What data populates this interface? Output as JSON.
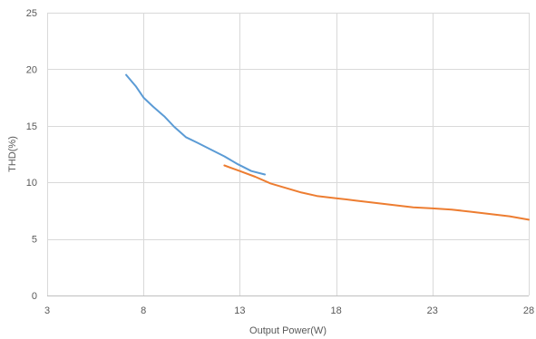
{
  "chart_data": {
    "type": "line",
    "title": "",
    "xlabel": "Output Power(W)",
    "ylabel": "THD(%)",
    "xlim": [
      3,
      28
    ],
    "ylim": [
      0,
      25
    ],
    "xticks": [
      3,
      8,
      13,
      18,
      23,
      28
    ],
    "yticks": [
      0,
      5,
      10,
      15,
      20,
      25
    ],
    "grid": true,
    "legend": "none",
    "series": [
      {
        "color": "#5b9bd5",
        "points": [
          [
            7.1,
            19.5
          ],
          [
            7.6,
            18.5
          ],
          [
            8.0,
            17.5
          ],
          [
            8.5,
            16.7
          ],
          [
            9.1,
            15.8
          ],
          [
            9.6,
            14.9
          ],
          [
            10.2,
            14.0
          ],
          [
            10.8,
            13.5
          ],
          [
            11.5,
            12.9
          ],
          [
            12.2,
            12.3
          ],
          [
            12.9,
            11.6
          ],
          [
            13.6,
            11.0
          ],
          [
            14.3,
            10.7
          ]
        ]
      },
      {
        "color": "#ed7d31",
        "points": [
          [
            12.2,
            11.5
          ],
          [
            13.0,
            11.0
          ],
          [
            13.8,
            10.5
          ],
          [
            14.6,
            9.9
          ],
          [
            15.4,
            9.5
          ],
          [
            16.2,
            9.1
          ],
          [
            17.0,
            8.8
          ],
          [
            18.0,
            8.6
          ],
          [
            19.0,
            8.4
          ],
          [
            20.0,
            8.2
          ],
          [
            21.0,
            8.0
          ],
          [
            22.0,
            7.8
          ],
          [
            23.0,
            7.7
          ],
          [
            24.0,
            7.6
          ],
          [
            25.0,
            7.4
          ],
          [
            26.0,
            7.2
          ],
          [
            27.0,
            7.0
          ],
          [
            28.0,
            6.7
          ]
        ]
      }
    ]
  }
}
